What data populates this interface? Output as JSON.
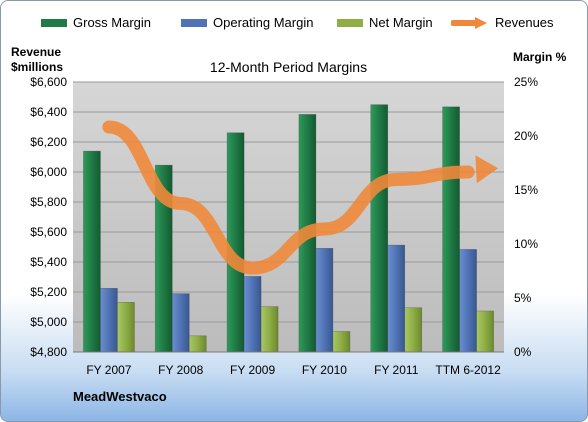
{
  "legend": {
    "gross": "Gross Margin",
    "operating": "Operating Margin",
    "net": "Net Margin",
    "revenues": "Revenues"
  },
  "left_axis_title": [
    "Revenue",
    "$millions"
  ],
  "right_axis_title": "Margin %",
  "company": "MeadWestvaco",
  "colors": {
    "gross": "#1f7a45",
    "operating": "#4f73b5",
    "net": "#8ead45",
    "revenues": "#f0883a",
    "plot_bg": "#c8c8c8"
  },
  "chart_data": {
    "type": "bar",
    "title": "12-Month Period Margins",
    "categories": [
      "FY 2007",
      "FY 2008",
      "FY 2009",
      "FY 2010",
      "FY 2011",
      "TTM 6-2012"
    ],
    "series": [
      {
        "name": "Gross Margin",
        "axis": "right",
        "values": [
          18.6,
          17.3,
          20.3,
          22.0,
          22.9,
          22.7
        ]
      },
      {
        "name": "Operating Margin",
        "axis": "right",
        "values": [
          5.9,
          5.4,
          7.0,
          9.6,
          9.9,
          9.5
        ]
      },
      {
        "name": "Net Margin",
        "axis": "right",
        "values": [
          4.6,
          1.5,
          4.2,
          1.9,
          4.1,
          3.8
        ]
      },
      {
        "name": "Revenues",
        "axis": "left",
        "type": "line",
        "values": [
          6300,
          5790,
          5360,
          5620,
          5950,
          6000
        ]
      }
    ],
    "y_left": {
      "label": "Revenue $millions",
      "ylim": [
        4800,
        6600
      ],
      "ticks": [
        "$4,800",
        "$5,000",
        "$5,200",
        "$5,400",
        "$5,600",
        "$5,800",
        "$6,000",
        "$6,200",
        "$6,400",
        "$6,600"
      ]
    },
    "y_right": {
      "label": "Margin %",
      "ylim": [
        0,
        25
      ],
      "ticks": [
        "0%",
        "5%",
        "10%",
        "15%",
        "20%",
        "25%"
      ]
    },
    "grid": true,
    "legend_position": "top"
  }
}
